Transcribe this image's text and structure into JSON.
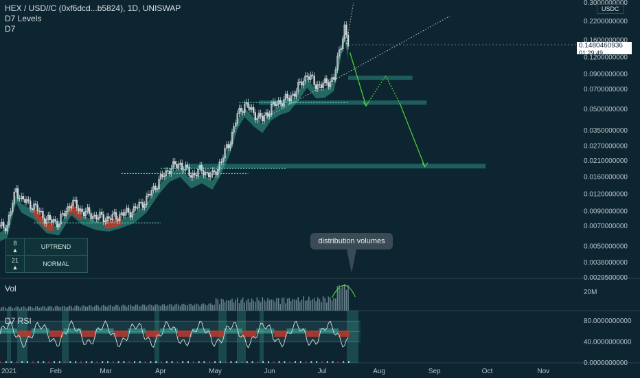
{
  "header": {
    "title": "HEX / USD//C (0xf6dcd...b5824), 1D, UNISWAP",
    "line2": "D7 Levels",
    "line3": "D7"
  },
  "currency_badge": "USDC",
  "last_price": {
    "value": "0.1480460936",
    "countdown": "01:29:49"
  },
  "trend_table": [
    {
      "num": "8",
      "arrow": "▲",
      "label": "UPTREND"
    },
    {
      "num": "21",
      "arrow": "▲",
      "label": "NORMAL"
    }
  ],
  "annotation": "distribution volumes",
  "panes": {
    "volume": "Vol",
    "rsi": "D7 RSI"
  },
  "colors": {
    "bg": "#0d2530",
    "up": "#e8f0f0",
    "down": "#cfd8da",
    "cloud": "#3fb8a0",
    "red": "#c0392b",
    "zone": "#2e8b85",
    "arrow": "#4cd137"
  },
  "chart_data": [
    {
      "type": "candlestick",
      "title": "HEX / USD//C (0xf6dcd...b5824), 1D, UNISWAP",
      "y_scale": "log",
      "y_ticks": [
        "0.3000000000",
        "0.2200000000",
        "0.1600000000",
        "0.1200000000",
        "0.0900000000",
        "0.0700000000",
        "0.0500000000",
        "0.0350000000",
        "0.0270000000",
        "0.0210000000",
        "0.0160000000",
        "0.0120000000",
        "0.0090000000",
        "0.0070000000",
        "0.0050000000",
        "0.0038000000",
        "0.0029500000"
      ],
      "y_tick_values": [
        0.3,
        0.22,
        0.16,
        0.12,
        0.09,
        0.07,
        0.05,
        0.035,
        0.027,
        0.021,
        0.016,
        0.012,
        0.009,
        0.007,
        0.005,
        0.0038,
        0.00295
      ],
      "ylim": [
        0.00295,
        0.3
      ],
      "x_ticks": [
        "2021",
        "Feb",
        "Mar",
        "Apr",
        "May",
        "Jun",
        "Jul",
        "Aug",
        "Sep",
        "Oct",
        "Nov"
      ],
      "close_path": [
        {
          "x": "2021-01-01",
          "y": 0.0068
        },
        {
          "x": "2021-01-05",
          "y": 0.0072
        },
        {
          "x": "2021-01-10",
          "y": 0.013
        },
        {
          "x": "2021-01-13",
          "y": 0.011
        },
        {
          "x": "2021-01-20",
          "y": 0.0098
        },
        {
          "x": "2021-01-27",
          "y": 0.0078
        },
        {
          "x": "2021-02-03",
          "y": 0.0075
        },
        {
          "x": "2021-02-10",
          "y": 0.0105
        },
        {
          "x": "2021-02-16",
          "y": 0.009
        },
        {
          "x": "2021-02-24",
          "y": 0.0082
        },
        {
          "x": "2021-03-03",
          "y": 0.008
        },
        {
          "x": "2021-03-10",
          "y": 0.0085
        },
        {
          "x": "2021-03-17",
          "y": 0.0092
        },
        {
          "x": "2021-03-24",
          "y": 0.011
        },
        {
          "x": "2021-03-31",
          "y": 0.015
        },
        {
          "x": "2021-04-06",
          "y": 0.0185
        },
        {
          "x": "2021-04-12",
          "y": 0.02
        },
        {
          "x": "2021-04-18",
          "y": 0.0165
        },
        {
          "x": "2021-04-24",
          "y": 0.018
        },
        {
          "x": "2021-04-30",
          "y": 0.0162
        },
        {
          "x": "2021-05-05",
          "y": 0.021
        },
        {
          "x": "2021-05-10",
          "y": 0.03
        },
        {
          "x": "2021-05-14",
          "y": 0.045
        },
        {
          "x": "2021-05-18",
          "y": 0.055
        },
        {
          "x": "2021-05-23",
          "y": 0.047
        },
        {
          "x": "2021-05-28",
          "y": 0.042
        },
        {
          "x": "2021-06-02",
          "y": 0.052
        },
        {
          "x": "2021-06-07",
          "y": 0.057
        },
        {
          "x": "2021-06-12",
          "y": 0.06
        },
        {
          "x": "2021-06-17",
          "y": 0.072
        },
        {
          "x": "2021-06-22",
          "y": 0.09
        },
        {
          "x": "2021-06-27",
          "y": 0.075
        },
        {
          "x": "2021-07-02",
          "y": 0.076
        },
        {
          "x": "2021-07-07",
          "y": 0.085
        },
        {
          "x": "2021-07-11",
          "y": 0.15
        },
        {
          "x": "2021-07-13",
          "y": 0.2
        },
        {
          "x": "2021-07-15",
          "y": 0.148
        }
      ],
      "support_zones": [
        {
          "from": "2021-07-15",
          "to": "2021-08-20",
          "low": 0.083,
          "high": 0.088
        },
        {
          "from": "2021-05-26",
          "to": "2021-08-28",
          "low": 0.054,
          "high": 0.058
        },
        {
          "from": "2021-04-15",
          "to": "2021-09-30",
          "low": 0.0185,
          "high": 0.02
        }
      ],
      "projection_path": [
        {
          "x": "2021-07-16",
          "y": 0.13
        },
        {
          "x": "2021-07-25",
          "y": 0.053
        },
        {
          "x": "2021-08-05",
          "y": 0.088
        },
        {
          "x": "2021-08-13",
          "y": 0.055
        },
        {
          "x": "2021-08-27",
          "y": 0.019
        }
      ],
      "last_price": 0.1480460936
    },
    {
      "type": "bar",
      "title": "Vol",
      "y_ticks": [
        "20M"
      ]
    },
    {
      "type": "line",
      "title": "D7 RSI",
      "y_ticks": [
        "80.0000000000",
        "40.0000000000",
        "0.0000000000"
      ],
      "ylim": [
        0,
        100
      ]
    }
  ]
}
